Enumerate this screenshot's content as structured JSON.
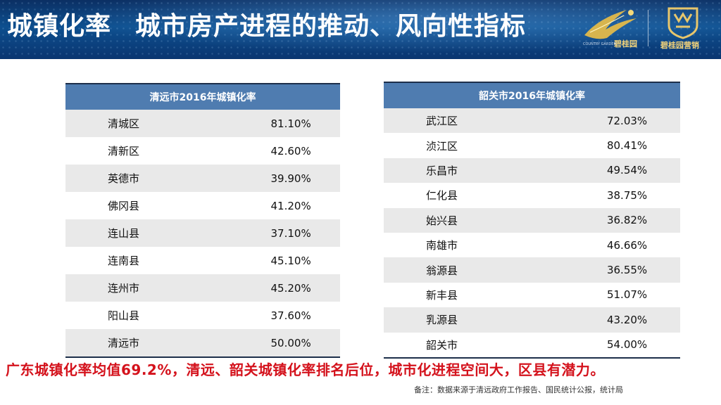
{
  "header": {
    "title_part1": "城镇化率",
    "title_part2": "城市房产进程的推动、风向性指标",
    "logo1": {
      "brand_cn": "碧桂园",
      "brand_en": "COUNTRY GARDEN",
      "icon": "country-garden-logo"
    },
    "logo2": {
      "brand_cn": "碧桂园营销",
      "icon": "marketing-shield-logo"
    }
  },
  "left_table": {
    "header": "清远市2016年城镇化率",
    "rows": [
      {
        "name": "清城区",
        "value": "81.10%"
      },
      {
        "name": "清新区",
        "value": "42.60%"
      },
      {
        "name": "英德市",
        "value": "39.90%"
      },
      {
        "name": "佛冈县",
        "value": "41.20%"
      },
      {
        "name": "连山县",
        "value": "37.10%"
      },
      {
        "name": "连南县",
        "value": "45.10%"
      },
      {
        "name": "连州市",
        "value": "45.20%"
      },
      {
        "name": "阳山县",
        "value": "37.60%"
      },
      {
        "name": "清远市",
        "value": "50.00%"
      }
    ]
  },
  "right_table": {
    "header": "韶关市2016年城镇化率",
    "rows": [
      {
        "name": "武江区",
        "value": "72.03%"
      },
      {
        "name": "浈江区",
        "value": "80.41%"
      },
      {
        "name": "乐昌市",
        "value": "49.54%"
      },
      {
        "name": "仁化县",
        "value": "38.75%"
      },
      {
        "name": "始兴县",
        "value": "36.82%"
      },
      {
        "name": "南雄市",
        "value": "46.66%"
      },
      {
        "name": "翁源县",
        "value": "36.55%"
      },
      {
        "name": "新丰县",
        "value": "51.07%"
      },
      {
        "name": "乳源县",
        "value": "43.20%"
      },
      {
        "name": "韶关市",
        "value": "54.00%"
      }
    ]
  },
  "conclusion": "广东城镇化率均值69.2%，清远、韶关城镇化率排名后位，城市化进程空间大，区县有潜力。",
  "note": "备注：数据来源于清远政府工作报告、国民统计公报，统计局",
  "colors": {
    "header_bg": "#0d4f8f",
    "table_header": "#4f7cb0",
    "conclusion": "#d4121c"
  }
}
